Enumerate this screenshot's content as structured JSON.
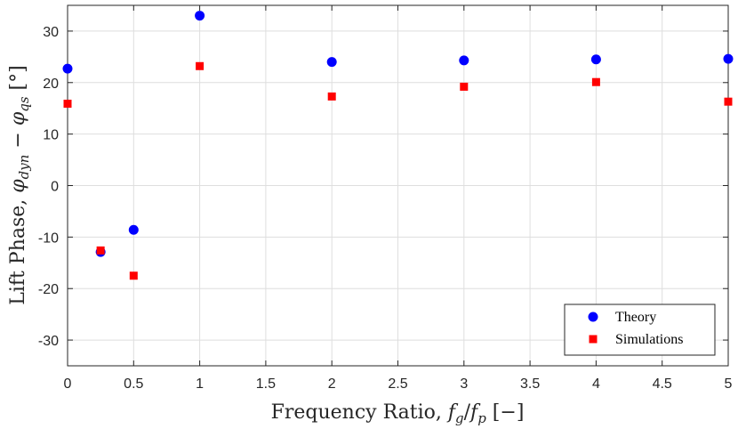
{
  "chart_data": {
    "type": "scatter",
    "xlabel": "Frequency Ratio, f_g/f_p [−]",
    "ylabel": "Lift Phase, φ_dyn − φ_qs [°]",
    "xlim": [
      0,
      5
    ],
    "ylim": [
      -35,
      35
    ],
    "xticks": [
      0,
      0.5,
      1,
      1.5,
      2,
      2.5,
      3,
      3.5,
      4,
      4.5,
      5
    ],
    "xtick_labels": [
      "0",
      "0.5",
      "1",
      "1.5",
      "2",
      "2.5",
      "3",
      "3.5",
      "4",
      "4.5",
      "5"
    ],
    "yticks": [
      30,
      20,
      10,
      0,
      -10,
      -20,
      -30
    ],
    "ytick_labels": [
      "30",
      "20",
      "10",
      "0",
      "-10",
      "-20",
      "-30"
    ],
    "grid": true,
    "legend_position": "bottom-right",
    "series": [
      {
        "name": "Theory",
        "marker": "circle",
        "color": "#0000ff",
        "x": [
          0,
          0.25,
          0.5,
          1,
          2,
          3,
          4,
          5
        ],
        "y": [
          22.7,
          -12.9,
          -8.6,
          33.0,
          24.0,
          24.3,
          24.5,
          24.6
        ]
      },
      {
        "name": "Simulations",
        "marker": "square",
        "color": "#ff0000",
        "x": [
          0,
          0.25,
          0.5,
          1,
          2,
          3,
          4,
          5
        ],
        "y": [
          15.9,
          -12.6,
          -17.5,
          23.2,
          17.3,
          19.2,
          20.1,
          16.3
        ]
      }
    ]
  }
}
